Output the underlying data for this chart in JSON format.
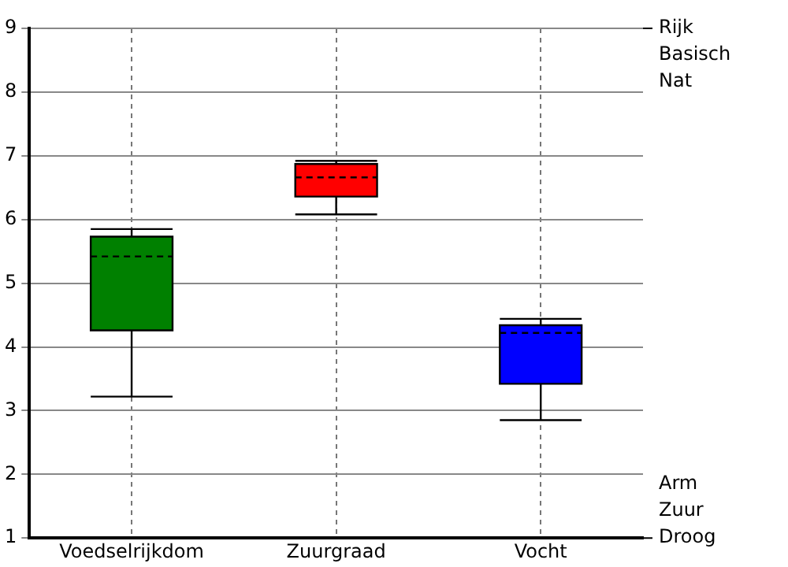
{
  "chart_data": {
    "type": "box",
    "categories": [
      "Voedselrijkdom",
      "Zuurgraad",
      "Vocht"
    ],
    "boxes": [
      {
        "low": 3.22,
        "q1": 4.26,
        "median": 5.42,
        "q3": 5.73,
        "high": 5.85
      },
      {
        "low": 6.08,
        "q1": 6.36,
        "median": 6.66,
        "q3": 6.87,
        "high": 6.92
      },
      {
        "low": 2.85,
        "q1": 3.42,
        "median": 4.22,
        "q3": 4.34,
        "high": 4.44
      }
    ],
    "colors": [
      "#008000",
      "#ff0000",
      "#0000ff"
    ],
    "ylim": [
      1,
      9
    ],
    "yticks": [
      1,
      2,
      3,
      4,
      5,
      6,
      7,
      8,
      9
    ],
    "grid": true,
    "annotations": [
      "Rijk",
      "Basisch",
      "Nat",
      "Arm",
      "Zuur",
      "Droog"
    ]
  }
}
